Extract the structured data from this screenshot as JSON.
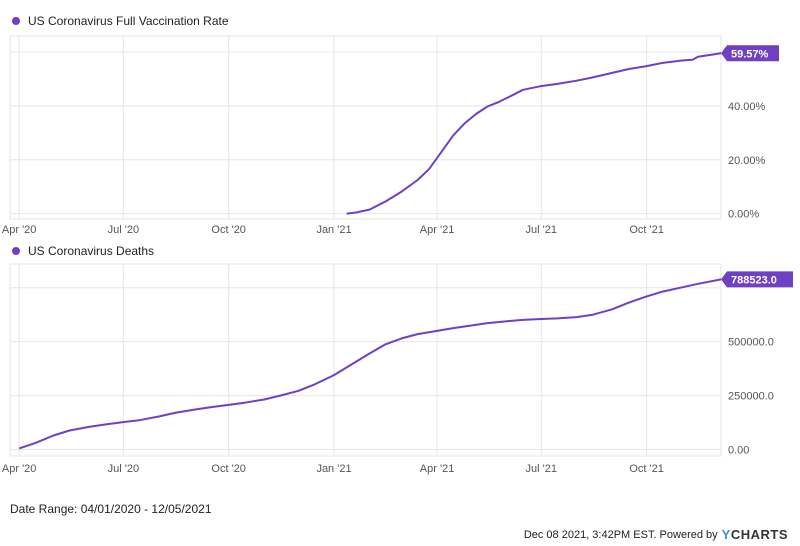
{
  "colors": {
    "series": "#6f3fc4",
    "grid": "#e6e6e6",
    "axis_text": "#555555"
  },
  "footer": {
    "date_range": "Date Range: 04/01/2020 - 12/05/2021",
    "credit": "Dec 08 2021, 3:42PM EST. Powered by",
    "logo_y": "Y",
    "logo_rest": "CHARTS"
  },
  "chart_data": [
    {
      "type": "line",
      "title": "US Coronavirus Full Vaccination Rate",
      "series": [
        {
          "name": "US Coronavirus Full Vaccination Rate"
        }
      ],
      "x_ticks": [
        "Apr '20",
        "Jul '20",
        "Oct '20",
        "Jan '21",
        "Apr '21",
        "Jul '21",
        "Oct '21"
      ],
      "y_ticks": [
        "0.00%",
        "20.00%",
        "40.00%"
      ],
      "y_tick_values": [
        0,
        20,
        40
      ],
      "ylim": [
        -2,
        66
      ],
      "last_value_label": "59.57%",
      "last_value": 59.57,
      "points": [
        [
          "2021-01-12",
          0.0
        ],
        [
          "2021-01-20",
          0.4
        ],
        [
          "2021-02-01",
          1.5
        ],
        [
          "2021-02-15",
          4.5
        ],
        [
          "2021-03-01",
          8.2
        ],
        [
          "2021-03-15",
          12.5
        ],
        [
          "2021-03-25",
          16.5
        ],
        [
          "2021-04-05",
          23.0
        ],
        [
          "2021-04-15",
          29.0
        ],
        [
          "2021-04-25",
          33.5
        ],
        [
          "2021-05-05",
          37.0
        ],
        [
          "2021-05-15",
          39.8
        ],
        [
          "2021-05-25",
          41.5
        ],
        [
          "2021-06-05",
          43.8
        ],
        [
          "2021-06-15",
          46.0
        ],
        [
          "2021-06-30",
          47.3
        ],
        [
          "2021-07-15",
          48.2
        ],
        [
          "2021-08-01",
          49.4
        ],
        [
          "2021-08-15",
          50.6
        ],
        [
          "2021-09-01",
          52.3
        ],
        [
          "2021-09-15",
          53.7
        ],
        [
          "2021-10-01",
          54.8
        ],
        [
          "2021-10-15",
          56.0
        ],
        [
          "2021-11-01",
          56.9
        ],
        [
          "2021-11-10",
          57.2
        ],
        [
          "2021-11-15",
          58.3
        ],
        [
          "2021-12-05",
          59.57
        ]
      ]
    },
    {
      "type": "line",
      "title": "US Coronavirus Deaths",
      "series": [
        {
          "name": "US Coronavirus Deaths"
        }
      ],
      "x_ticks": [
        "Apr '20",
        "Jul '20",
        "Oct '20",
        "Jan '21",
        "Apr '21",
        "Jul '21",
        "Oct '21"
      ],
      "y_ticks": [
        "0.00",
        "250000.0",
        "500000.0"
      ],
      "y_tick_values": [
        0,
        250000,
        500000
      ],
      "ylim": [
        -30000,
        860000
      ],
      "last_value_label": "788523.0",
      "last_value": 788523,
      "points": [
        [
          "2020-04-01",
          5000
        ],
        [
          "2020-04-15",
          30000
        ],
        [
          "2020-05-01",
          65000
        ],
        [
          "2020-05-15",
          88000
        ],
        [
          "2020-06-01",
          105000
        ],
        [
          "2020-06-15",
          116000
        ],
        [
          "2020-07-01",
          127000
        ],
        [
          "2020-07-15",
          136000
        ],
        [
          "2020-08-01",
          153000
        ],
        [
          "2020-08-15",
          170000
        ],
        [
          "2020-09-01",
          185000
        ],
        [
          "2020-09-15",
          196000
        ],
        [
          "2020-10-01",
          207000
        ],
        [
          "2020-10-15",
          217000
        ],
        [
          "2020-11-01",
          232000
        ],
        [
          "2020-11-15",
          250000
        ],
        [
          "2020-12-01",
          272000
        ],
        [
          "2020-12-15",
          302000
        ],
        [
          "2021-01-01",
          345000
        ],
        [
          "2021-01-15",
          390000
        ],
        [
          "2021-02-01",
          445000
        ],
        [
          "2021-02-15",
          488000
        ],
        [
          "2021-03-01",
          515000
        ],
        [
          "2021-03-15",
          535000
        ],
        [
          "2021-04-01",
          550000
        ],
        [
          "2021-04-15",
          563000
        ],
        [
          "2021-05-01",
          575000
        ],
        [
          "2021-05-15",
          586000
        ],
        [
          "2021-06-01",
          595000
        ],
        [
          "2021-06-15",
          601000
        ],
        [
          "2021-07-01",
          605000
        ],
        [
          "2021-07-15",
          608000
        ],
        [
          "2021-08-01",
          614000
        ],
        [
          "2021-08-15",
          625000
        ],
        [
          "2021-09-01",
          650000
        ],
        [
          "2021-09-15",
          680000
        ],
        [
          "2021-10-01",
          710000
        ],
        [
          "2021-10-15",
          732000
        ],
        [
          "2021-11-01",
          752000
        ],
        [
          "2021-11-15",
          768000
        ],
        [
          "2021-12-05",
          788523
        ]
      ]
    }
  ]
}
